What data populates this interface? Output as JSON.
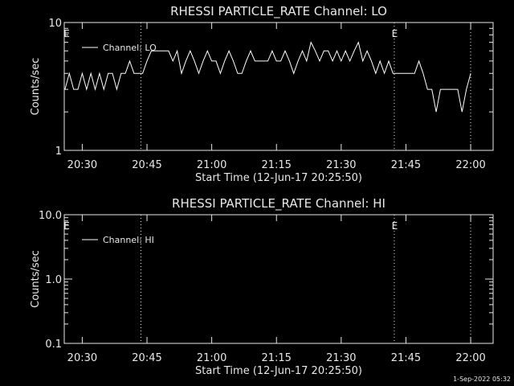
{
  "chart_data": [
    {
      "type": "line",
      "title": "RHESSI PARTICLE_RATE Channel: LO",
      "xlabel": "Start Time (12-Jun-17 20:25:50)",
      "ylabel": "Counts/sec",
      "log_y": true,
      "ylim": [
        1,
        10
      ],
      "yticks": [
        1,
        10
      ],
      "xlim": [
        1225.83,
        1325.2
      ],
      "xticks": [
        {
          "value": 1230,
          "label": "20:30"
        },
        {
          "value": 1245,
          "label": "20:45"
        },
        {
          "value": 1260,
          "label": "21:00"
        },
        {
          "value": 1275,
          "label": "21:15"
        },
        {
          "value": 1290,
          "label": "21:30"
        },
        {
          "value": 1305,
          "label": "21:45"
        },
        {
          "value": 1320,
          "label": "22:00"
        }
      ],
      "vlines": [
        1243.6,
        1302.3,
        1320
      ],
      "markers": [
        {
          "label": "E",
          "x": 1226.4
        },
        {
          "label": "E",
          "x": 1302.4
        }
      ],
      "legend": "upper left",
      "series": [
        {
          "name": "Channel: LO",
          "color": "#ffffff",
          "x": [
            1226,
            1227,
            1228,
            1229,
            1230,
            1231,
            1232,
            1233,
            1234,
            1235,
            1236,
            1237,
            1238,
            1239,
            1240,
            1241,
            1242,
            1243,
            1244,
            1245,
            1246,
            1247,
            1248,
            1249,
            1250,
            1251,
            1252,
            1253,
            1254,
            1255,
            1256,
            1257,
            1258,
            1259,
            1260,
            1261,
            1262,
            1263,
            1264,
            1265,
            1266,
            1267,
            1268,
            1269,
            1270,
            1271,
            1272,
            1273,
            1274,
            1275,
            1276,
            1277,
            1278,
            1279,
            1280,
            1281,
            1282,
            1283,
            1284,
            1285,
            1286,
            1287,
            1288,
            1289,
            1290,
            1291,
            1292,
            1293,
            1294,
            1295,
            1296,
            1297,
            1298,
            1299,
            1300,
            1301,
            1302,
            1303,
            1304,
            1305,
            1306,
            1307,
            1308,
            1309,
            1310,
            1311,
            1312,
            1313,
            1314,
            1315,
            1316,
            1317,
            1318,
            1319,
            1320
          ],
          "values": [
            3,
            4,
            3,
            3,
            4,
            3,
            4,
            3,
            4,
            3,
            4,
            4,
            3,
            4,
            4,
            5,
            4,
            4,
            4,
            5,
            6,
            6,
            6,
            6,
            6,
            5,
            6,
            4,
            5,
            6,
            5,
            4,
            5,
            6,
            5,
            5,
            4,
            5,
            6,
            5,
            4,
            4,
            5,
            6,
            5,
            5,
            5,
            5,
            6,
            5,
            5,
            6,
            5,
            4,
            5,
            6,
            5,
            7,
            6,
            5,
            6,
            6,
            5,
            6,
            5,
            6,
            5,
            6,
            7,
            5,
            6,
            5,
            4,
            5,
            4,
            5,
            4,
            4,
            4,
            4,
            4,
            4,
            5,
            4,
            3,
            3,
            2,
            3,
            3,
            3,
            3,
            3,
            2,
            3,
            4
          ]
        }
      ]
    },
    {
      "type": "line",
      "title": "RHESSI PARTICLE_RATE Channel: HI",
      "xlabel": "Start Time (12-Jun-17 20:25:50)",
      "ylabel": "Counts/sec",
      "log_y": true,
      "ylim": [
        0.1,
        10
      ],
      "yticks": [
        {
          "value": 0.1,
          "label": "0.1"
        },
        {
          "value": 1,
          "label": "1.0"
        },
        {
          "value": 10,
          "label": "10.0"
        }
      ],
      "xlim": [
        1225.83,
        1325.2
      ],
      "xticks": [
        {
          "value": 1230,
          "label": "20:30"
        },
        {
          "value": 1245,
          "label": "20:45"
        },
        {
          "value": 1260,
          "label": "21:00"
        },
        {
          "value": 1275,
          "label": "21:15"
        },
        {
          "value": 1290,
          "label": "21:30"
        },
        {
          "value": 1305,
          "label": "21:45"
        },
        {
          "value": 1320,
          "label": "22:00"
        }
      ],
      "vlines": [
        1243.6,
        1302.3,
        1320
      ],
      "markers": [
        {
          "label": "E",
          "x": 1226.4
        },
        {
          "label": "E",
          "x": 1302.4
        }
      ],
      "legend": "upper left",
      "series": [
        {
          "name": "Channel: HI",
          "color": "#ffffff",
          "x": [],
          "values": []
        }
      ]
    }
  ],
  "footer": "1-Sep-2022 05:32"
}
